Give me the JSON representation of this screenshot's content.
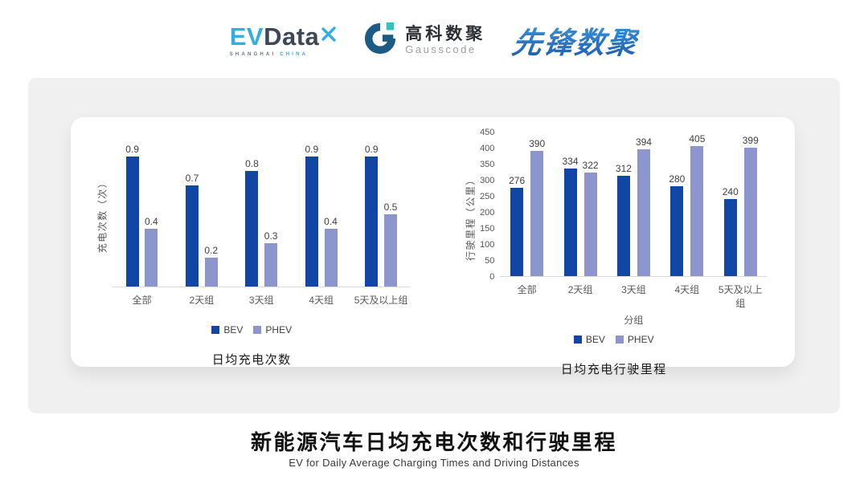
{
  "header": {
    "evdata": {
      "ev": "EV",
      "data": "Data",
      "tagline_left": "SHANGHAI",
      "tagline_right": "CHINA"
    },
    "gausscode": {
      "name_cn": "高科数聚",
      "name_en": "Gausscode"
    },
    "pioneer": {
      "name": "先锋数聚"
    }
  },
  "footer": {
    "title": "新能源汽车日均充电次数和行驶里程",
    "subtitle": "EV for Daily Average Charging Times and Driving Distances"
  },
  "colors": {
    "bev": "#1246A5",
    "phev": "#8C96CD",
    "card_gray": "#F0F0F1",
    "evdata_blue": "#33AEE2",
    "evdata_dark": "#3D4756",
    "gauss_dark": "#1B5B85",
    "gauss_teal": "#35C0BC",
    "pioneer_blue": "#2A72C8"
  },
  "chart_data": [
    {
      "type": "bar",
      "title": "日均充电次数",
      "categories": [
        "全部",
        "2天组",
        "3天组",
        "4天组",
        "5天及以上组"
      ],
      "series": [
        {
          "name": "BEV",
          "color": "#1246A5",
          "values": [
            0.9,
            0.7,
            0.8,
            0.9,
            0.9
          ]
        },
        {
          "name": "PHEV",
          "color": "#8C96CD",
          "values": [
            0.4,
            0.2,
            0.3,
            0.4,
            0.5
          ]
        }
      ],
      "ylabel": "充电次数（次）",
      "xlabel": "",
      "ylim": [
        0,
        1
      ],
      "yticks": null,
      "grid": false,
      "data_labels": true,
      "legend_position": "bottom"
    },
    {
      "type": "bar",
      "title": "日均充电行驶里程",
      "categories": [
        "全部",
        "2天组",
        "3天组",
        "4天组",
        "5天及以上组"
      ],
      "series": [
        {
          "name": "BEV",
          "color": "#1246A5",
          "values": [
            276,
            334,
            312,
            280,
            240
          ]
        },
        {
          "name": "PHEV",
          "color": "#8C96CD",
          "values": [
            390,
            322,
            394,
            405,
            399
          ]
        }
      ],
      "ylabel": "行驶里程（公里）",
      "xlabel": "分组",
      "ylim": [
        0,
        450
      ],
      "yticks": [
        0,
        50,
        100,
        150,
        200,
        250,
        300,
        350,
        400,
        450
      ],
      "grid": false,
      "data_labels": true,
      "legend_position": "bottom"
    }
  ]
}
